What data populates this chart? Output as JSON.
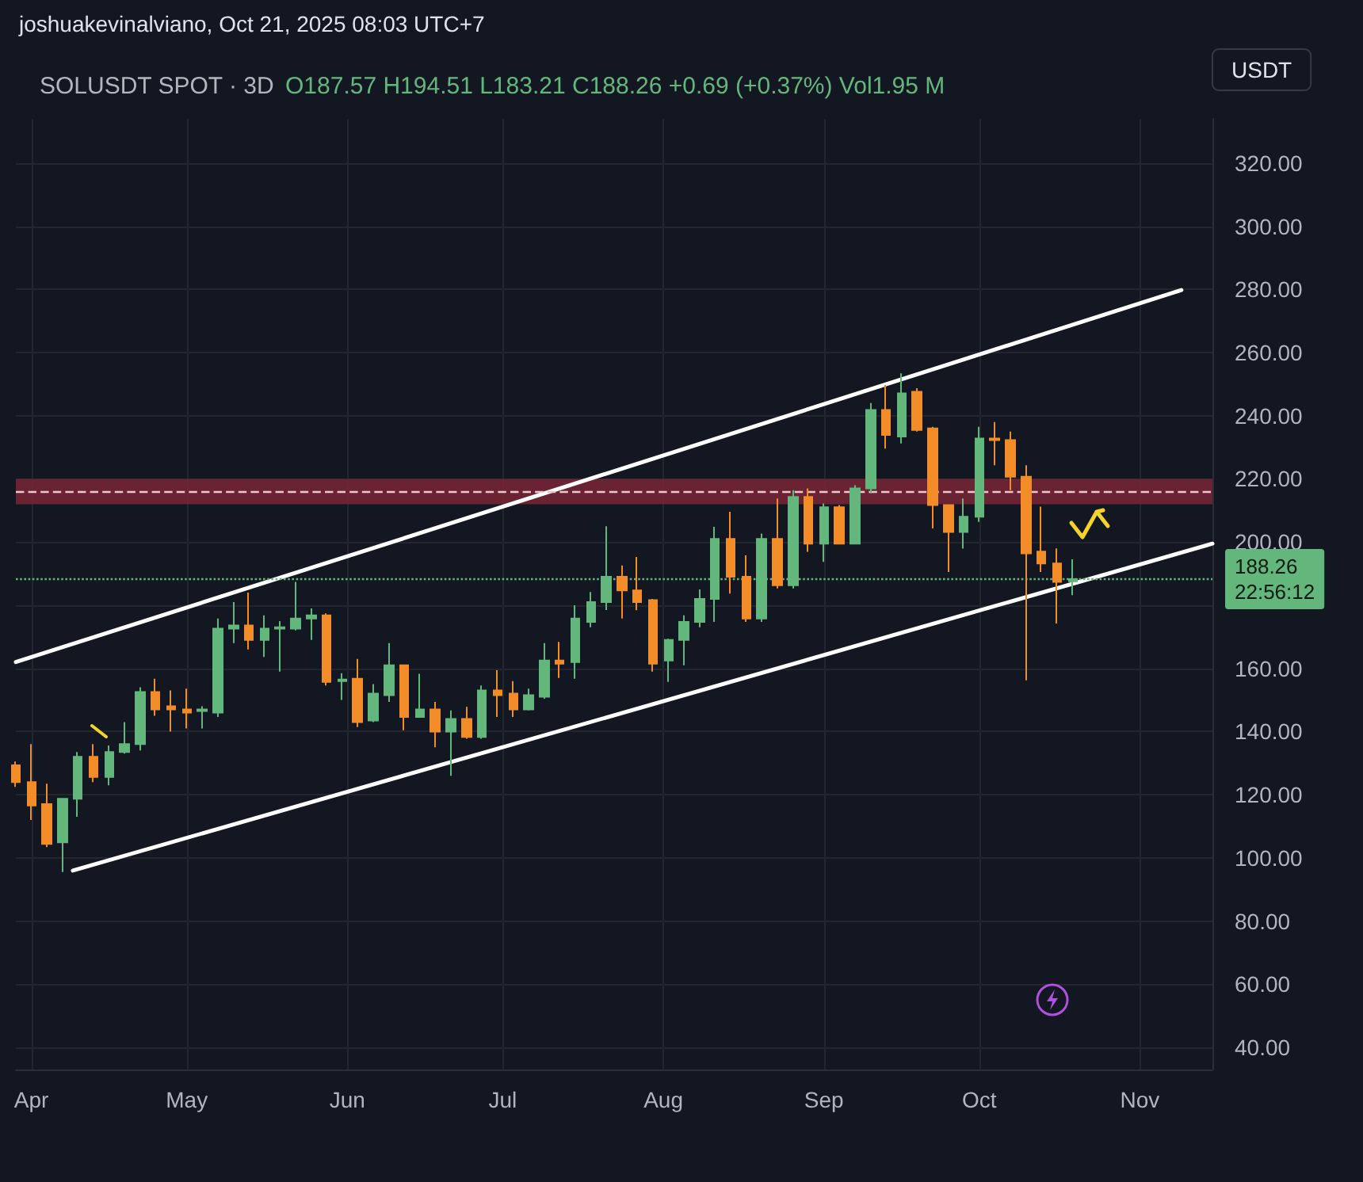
{
  "chart_data": {
    "type": "candlestick",
    "title": "SOLUSDT SPOT · 3D",
    "subtitle": "O187.57 H194.51 L183.21 C188.26 +0.69 (+0.37%) Vol1.95 M",
    "ylabel": "USDT",
    "annotations": [
      "joshuakevinalviano, Oct 21, 2025 08:03 UTC+7"
    ],
    "xlim": [
      "2025-03-29",
      "2025-11-15"
    ],
    "xticks": [
      {
        "value": "2025-04-01",
        "label": "Apr"
      },
      {
        "value": "2025-05-01",
        "label": "May"
      },
      {
        "value": "2025-06-01",
        "label": "Jun"
      },
      {
        "value": "2025-07-01",
        "label": "Jul"
      },
      {
        "value": "2025-08-01",
        "label": "Aug"
      },
      {
        "value": "2025-09-01",
        "label": "Sep"
      },
      {
        "value": "2025-10-01",
        "label": "Oct"
      },
      {
        "value": "2025-11-01",
        "label": "Nov"
      }
    ],
    "ylim": [
      33,
      334
    ],
    "yticks": [
      {
        "value": 40,
        "label": "40.00"
      },
      {
        "value": 60,
        "label": "60.00"
      },
      {
        "value": 80,
        "label": "80.00"
      },
      {
        "value": 100,
        "label": "100.00"
      },
      {
        "value": 120,
        "label": "120.00"
      },
      {
        "value": 140,
        "label": "140.00"
      },
      {
        "value": 160,
        "label": "160.00"
      },
      {
        "value": 180,
        "label": null
      },
      {
        "value": 200,
        "label": "200.00"
      },
      {
        "value": 220,
        "label": "220.00"
      },
      {
        "value": 240,
        "label": "240.00"
      },
      {
        "value": 260,
        "label": "260.00"
      },
      {
        "value": 280,
        "label": "280.00"
      },
      {
        "value": 300,
        "label": "300.00"
      },
      {
        "value": 320,
        "label": "320.00"
      }
    ],
    "grid": true,
    "bands": [
      {
        "axis": "y",
        "from": 212,
        "to": 220,
        "color": "#7a2636"
      }
    ],
    "ref_lines": [
      {
        "axis": "y",
        "value": 216,
        "color": "#f0c8cc",
        "line_style": "dashed"
      },
      {
        "axis": "y",
        "value": 188.26,
        "label": "188.26\n22:56:12",
        "color": "#63b77c",
        "line_style": "dotted"
      }
    ],
    "series": [
      {
        "x": [
          "2025-03-29",
          "2025-04-01",
          "2025-04-04",
          "2025-04-07",
          "2025-04-10",
          "2025-04-13",
          "2025-04-16",
          "2025-04-19",
          "2025-04-22",
          "2025-04-25",
          "2025-04-28",
          "2025-05-01",
          "2025-05-04",
          "2025-05-07",
          "2025-05-10",
          "2025-05-13",
          "2025-05-16",
          "2025-05-19",
          "2025-05-22",
          "2025-05-25",
          "2025-05-28",
          "2025-05-31",
          "2025-06-03",
          "2025-06-06",
          "2025-06-09",
          "2025-06-12",
          "2025-06-15",
          "2025-06-18",
          "2025-06-21",
          "2025-06-24",
          "2025-06-27",
          "2025-06-30",
          "2025-07-03",
          "2025-07-06",
          "2025-07-09",
          "2025-07-12",
          "2025-07-15",
          "2025-07-18",
          "2025-07-21",
          "2025-07-24",
          "2025-07-27",
          "2025-07-30",
          "2025-08-02",
          "2025-08-05",
          "2025-08-08",
          "2025-08-11",
          "2025-08-14",
          "2025-08-17",
          "2025-08-20",
          "2025-08-23",
          "2025-08-26",
          "2025-08-29",
          "2025-09-01",
          "2025-09-04",
          "2025-09-07",
          "2025-09-10",
          "2025-09-13",
          "2025-09-16",
          "2025-09-19",
          "2025-09-22",
          "2025-09-25",
          "2025-09-28",
          "2025-10-01",
          "2025-10-04",
          "2025-10-07",
          "2025-10-10",
          "2025-10-13",
          "2025-10-16",
          "2025-10-19"
        ],
        "ohlc": [
          [
            129.3,
            130.5,
            122.5,
            124
          ],
          [
            124,
            136,
            112,
            116.6
          ],
          [
            117,
            123.5,
            103.4,
            104.4
          ],
          [
            104.9,
            118.7,
            95.5,
            118.7
          ],
          [
            118.7,
            133.5,
            113,
            132
          ],
          [
            132,
            136,
            124,
            125.6
          ],
          [
            125.6,
            135.6,
            123,
            133.5
          ],
          [
            133.5,
            143,
            133,
            136
          ],
          [
            136,
            154,
            134,
            152.5
          ],
          [
            152.5,
            156.7,
            145,
            147
          ],
          [
            148,
            153,
            140,
            147
          ],
          [
            147,
            153.6,
            141,
            146
          ],
          [
            146.5,
            148,
            141,
            147
          ],
          [
            146,
            175.8,
            144.6,
            172.6
          ],
          [
            172.6,
            181,
            168,
            173.6
          ],
          [
            173.6,
            184,
            166,
            169
          ],
          [
            169,
            176.8,
            163.6,
            172.6
          ],
          [
            172.6,
            175,
            159,
            173
          ],
          [
            172.6,
            187.4,
            172,
            175.8
          ],
          [
            175.8,
            179,
            169,
            176.8
          ],
          [
            176.8,
            177.4,
            154.6,
            155.7
          ],
          [
            156,
            158.5,
            150,
            156.5
          ],
          [
            156.7,
            163,
            141.4,
            143
          ],
          [
            143.5,
            155,
            143,
            152
          ],
          [
            151.5,
            168,
            149.4,
            161
          ],
          [
            161,
            161,
            140.4,
            144.6
          ],
          [
            144.6,
            158.3,
            144.6,
            147
          ],
          [
            147,
            149.4,
            135,
            140
          ],
          [
            140,
            146.7,
            126,
            144
          ],
          [
            144,
            147.8,
            137.7,
            138.3
          ],
          [
            138.3,
            154.6,
            137.7,
            153
          ],
          [
            153,
            159.4,
            144.6,
            151.5
          ],
          [
            152,
            156,
            144.6,
            147
          ],
          [
            147,
            153.6,
            146.7,
            151.5
          ],
          [
            151,
            168,
            150.4,
            162.5
          ],
          [
            162.5,
            168.4,
            157,
            161.5
          ],
          [
            162,
            180,
            156.7,
            175.8
          ],
          [
            174.7,
            184.2,
            173,
            181
          ],
          [
            181,
            205,
            178.5,
            189
          ],
          [
            189,
            192.6,
            175.8,
            184.7
          ],
          [
            184.7,
            195.3,
            178.4,
            181
          ],
          [
            181.6,
            182,
            159,
            161.5
          ],
          [
            162.5,
            169.4,
            155.7,
            169
          ],
          [
            169,
            176.8,
            161,
            174.7
          ],
          [
            174.7,
            185,
            173,
            182
          ],
          [
            182,
            204.8,
            174.7,
            201
          ],
          [
            201,
            209.6,
            183.7,
            189
          ],
          [
            189,
            195.8,
            174.7,
            175.8
          ],
          [
            175.8,
            202.7,
            174.7,
            201
          ],
          [
            201,
            213.8,
            185.3,
            186.3
          ],
          [
            186.3,
            216.4,
            185.3,
            214.3
          ],
          [
            214.3,
            217,
            196.9,
            199.5
          ],
          [
            199.5,
            212.2,
            193.7,
            211
          ],
          [
            211,
            211.7,
            199.5,
            199.5
          ],
          [
            199.5,
            218,
            199.5,
            217
          ],
          [
            217,
            244,
            215.4,
            241.8
          ],
          [
            241.8,
            249.7,
            229.6,
            233.9
          ],
          [
            233.4,
            253.4,
            231.2,
            247.1
          ],
          [
            247.6,
            248.7,
            235,
            235.5
          ],
          [
            236,
            236.5,
            204.3,
            211.7
          ],
          [
            211.7,
            211.7,
            190.5,
            203.2
          ],
          [
            203.2,
            213.8,
            197.9,
            208
          ],
          [
            208,
            236.5,
            206.4,
            232.8
          ],
          [
            232.8,
            238,
            224.3,
            232.3
          ],
          [
            232.3,
            235,
            216.4,
            220.7
          ],
          [
            220.7,
            224.3,
            156.2,
            196.4
          ],
          [
            197,
            211.2,
            190.5,
            193.2
          ],
          [
            193.2,
            198,
            174.2,
            187.4
          ],
          [
            187.57,
            194.51,
            183.21,
            188.26
          ]
        ],
        "colors": [
          "#f28c28",
          "#f28c28",
          "#f28c28",
          "#63b77c",
          "#63b77c",
          "#f28c28",
          "#63b77c",
          "#63b77c",
          "#63b77c",
          "#f28c28",
          "#f28c28",
          "#f28c28",
          "#63b77c",
          "#63b77c",
          "#63b77c",
          "#f28c28",
          "#63b77c",
          "#63b77c",
          "#63b77c",
          "#63b77c",
          "#f28c28",
          "#63b77c",
          "#f28c28",
          "#63b77c",
          "#63b77c",
          "#f28c28",
          "#63b77c",
          "#f28c28",
          "#63b77c",
          "#f28c28",
          "#63b77c",
          "#f28c28",
          "#f28c28",
          "#63b77c",
          "#63b77c",
          "#f28c28",
          "#63b77c",
          "#63b77c",
          "#63b77c",
          "#f28c28",
          "#f28c28",
          "#f28c28",
          "#63b77c",
          "#63b77c",
          "#63b77c",
          "#63b77c",
          "#f28c28",
          "#f28c28",
          "#63b77c",
          "#f28c28",
          "#63b77c",
          "#f28c28",
          "#63b77c",
          "#f28c28",
          "#63b77c",
          "#63b77c",
          "#f28c28",
          "#63b77c",
          "#f28c28",
          "#f28c28",
          "#f28c28",
          "#63b77c",
          "#63b77c",
          "#f28c28",
          "#f28c28",
          "#f28c28",
          "#f28c28",
          "#f28c28",
          "#63b77c"
        ]
      },
      {
        "type": "line",
        "color": "#ffffff",
        "x": [
          "2025-03-29",
          "2025-11-09"
        ],
        "values": [
          162,
          279.8
        ]
      },
      {
        "type": "line",
        "color": "#ffffff",
        "x": [
          "2025-04-09",
          "2025-11-15"
        ],
        "values": [
          96,
          199.5
        ]
      }
    ]
  }
}
